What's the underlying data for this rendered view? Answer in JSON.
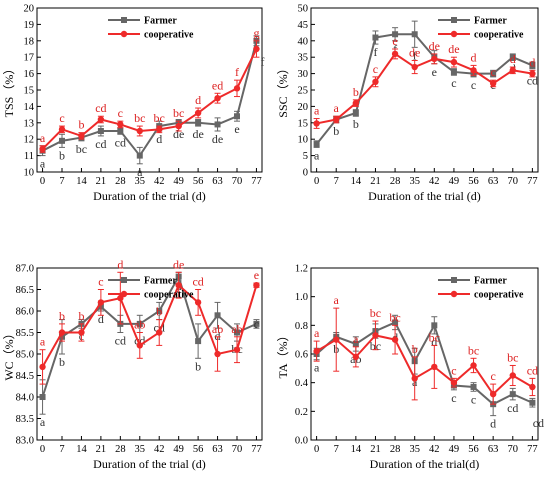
{
  "colors": {
    "farmer": "#666666",
    "cooperative": "#ee2a2a",
    "axis": "#000000",
    "farmer_letter": "#333333",
    "coop_letter": "#dd2222"
  },
  "chart_data": [
    {
      "type": "line",
      "xlabel": "Duration of the trial (d)",
      "ylabel": "TSS（%）",
      "x": [
        0,
        7,
        14,
        21,
        28,
        35,
        42,
        49,
        56,
        63,
        70,
        77
      ],
      "ylim": [
        10,
        20
      ],
      "yticks": [
        10,
        11,
        12,
        13,
        14,
        15,
        16,
        17,
        18,
        19,
        20
      ],
      "legend": "top-left",
      "series": [
        {
          "name": "Farmer",
          "values": [
            11.3,
            11.9,
            12.1,
            12.5,
            12.5,
            11.0,
            12.8,
            13.0,
            13.0,
            12.9,
            13.4,
            18.0
          ],
          "err": [
            0.3,
            0.4,
            0.2,
            0.3,
            0.2,
            0.5,
            0.3,
            0.2,
            0.2,
            0.4,
            0.3,
            0.3
          ],
          "letters": [
            "a",
            "b",
            "bc",
            "cd",
            "cd",
            "a",
            "d",
            "de",
            "de",
            "de",
            "e",
            "f"
          ]
        },
        {
          "name": "cooperative",
          "values": [
            11.4,
            12.6,
            12.2,
            13.2,
            12.9,
            12.5,
            12.6,
            12.8,
            13.6,
            14.5,
            15.1,
            17.5
          ],
          "err": [
            0.2,
            0.2,
            0.2,
            0.2,
            0.2,
            0.3,
            0.2,
            0.3,
            0.3,
            0.3,
            0.5,
            0.5
          ],
          "letters": [
            "a",
            "c",
            "b",
            "cd",
            "c",
            "bc",
            "bc",
            "bc",
            "d",
            "ed",
            "f",
            "g"
          ]
        }
      ]
    },
    {
      "type": "line",
      "xlabel": "Duration of the trial (d)",
      "ylabel": "SSC（%）",
      "x": [
        0,
        7,
        14,
        21,
        28,
        35,
        42,
        49,
        56,
        63,
        70,
        77
      ],
      "ylim": [
        0,
        50
      ],
      "yticks": [
        0,
        5,
        10,
        15,
        20,
        25,
        30,
        35,
        40,
        45,
        50
      ],
      "legend": "top-right",
      "series": [
        {
          "name": "Farmer",
          "values": [
            8.5,
            16.0,
            18.0,
            41.0,
            42.0,
            42.0,
            35.0,
            30.5,
            30.0,
            30.0,
            35.0,
            32.5
          ],
          "err": [
            1.0,
            1.0,
            1.0,
            2.0,
            2.0,
            4.0,
            2.0,
            1.0,
            1.0,
            1.0,
            1.0,
            1.0
          ],
          "letters": [
            "a",
            "b",
            "b",
            "f",
            "f",
            "f",
            "e",
            "c",
            "c",
            "c",
            "d",
            "cd"
          ]
        },
        {
          "name": "cooperative",
          "values": [
            14.8,
            16.0,
            21.0,
            27.5,
            36.0,
            32.0,
            34.5,
            33.5,
            31.0,
            27.0,
            31.0,
            30.0
          ],
          "err": [
            1.5,
            1.0,
            1.0,
            1.5,
            1.5,
            2.0,
            1.5,
            1.5,
            1.5,
            1.0,
            1.0,
            1.0
          ],
          "letters": [
            "a",
            "a",
            "b",
            "c",
            "e",
            "de",
            "de",
            "de",
            "d",
            "c",
            "d",
            "d"
          ]
        }
      ]
    },
    {
      "type": "line",
      "xlabel": "Duration of the trial (d)",
      "ylabel": "WC（%）",
      "x": [
        0,
        7,
        14,
        21,
        28,
        35,
        42,
        49,
        56,
        63,
        70,
        77
      ],
      "ylim": [
        83.0,
        87.0
      ],
      "yticks": [
        83.0,
        83.5,
        84.0,
        84.5,
        85.0,
        85.5,
        86.0,
        86.5,
        87.0
      ],
      "ytick_labels": [
        "83.0",
        "83.5",
        "84.0",
        "84.5",
        "85.0",
        "85.5",
        "86.0",
        "86.5",
        "87.0"
      ],
      "legend": "top-left",
      "series": [
        {
          "name": "Farmer",
          "values": [
            84.0,
            85.4,
            85.7,
            86.1,
            85.7,
            85.7,
            86.0,
            86.8,
            85.3,
            85.9,
            85.5,
            85.7
          ],
          "err": [
            0.4,
            0.4,
            0.1,
            0.1,
            0.2,
            0.2,
            0.2,
            0.1,
            0.4,
            0.3,
            0.2,
            0.1
          ],
          "letters": [
            "a",
            "b",
            "c",
            "d",
            "cd",
            "cd",
            "cd",
            "e",
            "b",
            "d",
            "bc",
            "c"
          ]
        },
        {
          "name": "cooperative",
          "values": [
            84.7,
            85.5,
            85.5,
            86.2,
            86.3,
            85.2,
            85.5,
            86.6,
            86.2,
            85.0,
            85.1,
            86.6
          ],
          "err": [
            0.4,
            0.2,
            0.2,
            0.3,
            0.6,
            0.3,
            0.3,
            0.3,
            0.3,
            0.4,
            0.3,
            0.05
          ],
          "letters": [
            "a",
            "b",
            "b",
            "c",
            "d",
            "ab",
            "b",
            "de",
            "cd",
            "ab",
            "ab",
            "e"
          ]
        }
      ]
    },
    {
      "type": "line",
      "xlabel": "Duration of the trial(d)",
      "ylabel": "TA（%）",
      "x": [
        0,
        7,
        14,
        21,
        28,
        35,
        42,
        49,
        56,
        63,
        70,
        77
      ],
      "ylim": [
        0.0,
        1.2
      ],
      "yticks": [
        0.0,
        0.2,
        0.4,
        0.6,
        0.8,
        1.0,
        1.2
      ],
      "ytick_labels": [
        "0.0",
        "0.2",
        "0.4",
        "0.6",
        "0.8",
        "1.0",
        "1.2"
      ],
      "legend": "top-right",
      "series": [
        {
          "name": "Farmer",
          "values": [
            0.6,
            0.72,
            0.67,
            0.76,
            0.82,
            0.55,
            0.8,
            0.38,
            0.37,
            0.25,
            0.32,
            0.26
          ],
          "err": [
            0.04,
            0.03,
            0.05,
            0.05,
            0.05,
            0.09,
            0.06,
            0.03,
            0.03,
            0.08,
            0.04,
            0.03
          ],
          "letters": [
            "a",
            "b",
            "ab",
            "bc",
            "d",
            "a",
            "d",
            "c",
            "c",
            "d",
            "cd",
            "cd"
          ]
        },
        {
          "name": "cooperative",
          "values": [
            0.62,
            0.7,
            0.58,
            0.73,
            0.7,
            0.43,
            0.51,
            0.4,
            0.52,
            0.32,
            0.45,
            0.37
          ],
          "err": [
            0.07,
            0.22,
            0.07,
            0.1,
            0.1,
            0.15,
            0.15,
            0.03,
            0.05,
            0.07,
            0.07,
            0.06
          ],
          "letters": [
            "a",
            "a",
            "a",
            "bc",
            "bc",
            "b",
            "bc",
            "c",
            "bc",
            "c",
            "bc",
            "cd"
          ]
        }
      ]
    }
  ]
}
